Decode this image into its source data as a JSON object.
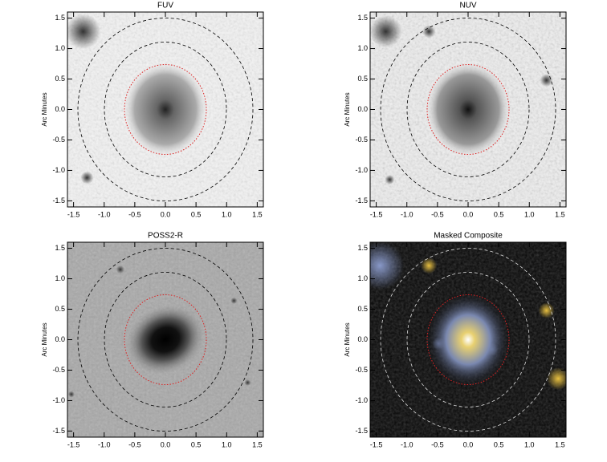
{
  "chart_data": [
    {
      "type": "image",
      "title": "FUV",
      "ylabel": "Arc Minutes",
      "xlim": [
        -1.6,
        1.6
      ],
      "ylim": [
        -1.6,
        1.6
      ],
      "xticks": [
        -1.5,
        {
          "value": -1,
          "label": "-1.0"
        },
        -0.5,
        {
          "value": 0,
          "label": "0.0"
        },
        0.5,
        {
          "value": 1,
          "label": "1.0"
        },
        1.5
      ],
      "yticks": [
        -1.5,
        {
          "value": -1,
          "label": "-1.0"
        },
        -0.5,
        {
          "value": 0,
          "label": "0.0"
        },
        0.5,
        {
          "value": 1,
          "label": "1.0"
        },
        1.5
      ]
    },
    {
      "type": "image",
      "title": "NUV",
      "ylabel": "Arc Minutes",
      "xlim": [
        -1.6,
        1.6
      ],
      "ylim": [
        -1.6,
        1.6
      ],
      "xticks": [
        -1.5,
        {
          "value": -1,
          "label": "-1.0"
        },
        -0.5,
        {
          "value": 0,
          "label": "0.0"
        },
        0.5,
        {
          "value": 1,
          "label": "1.0"
        },
        1.5
      ],
      "yticks": [
        -1.5,
        {
          "value": -1,
          "label": "-1.0"
        },
        -0.5,
        {
          "value": 0,
          "label": "0.0"
        },
        0.5,
        {
          "value": 1,
          "label": "1.0"
        },
        1.5
      ]
    },
    {
      "type": "image",
      "title": "POSS2-R",
      "ylabel": "Arc Minutes",
      "xlim": [
        -1.6,
        1.6
      ],
      "ylim": [
        -1.6,
        1.6
      ],
      "xticks": [
        -1.5,
        {
          "value": -1,
          "label": "-1.0"
        },
        -0.5,
        {
          "value": 0,
          "label": "0.0"
        },
        0.5,
        {
          "value": 1,
          "label": "1.0"
        },
        1.5
      ],
      "yticks": [
        -1.5,
        {
          "value": -1,
          "label": "-1.0"
        },
        -0.5,
        {
          "value": 0,
          "label": "0.0"
        },
        0.5,
        {
          "value": 1,
          "label": "1.0"
        },
        1.5
      ]
    },
    {
      "type": "image",
      "title": "Masked Composite",
      "ylabel": "Arc Minutes",
      "xlim": [
        -1.6,
        1.6
      ],
      "ylim": [
        -1.6,
        1.6
      ],
      "xticks": [
        -1.5,
        {
          "value": -1,
          "label": "-1.0"
        },
        -0.5,
        {
          "value": 0,
          "label": "0.0"
        },
        0.5,
        {
          "value": 1,
          "label": "1.0"
        },
        1.5
      ],
      "yticks": [
        -1.5,
        {
          "value": -1,
          "label": "-1.0"
        },
        -0.5,
        {
          "value": 0,
          "label": "0.0"
        },
        0.5,
        {
          "value": 1,
          "label": "1.0"
        },
        1.5
      ]
    }
  ]
}
